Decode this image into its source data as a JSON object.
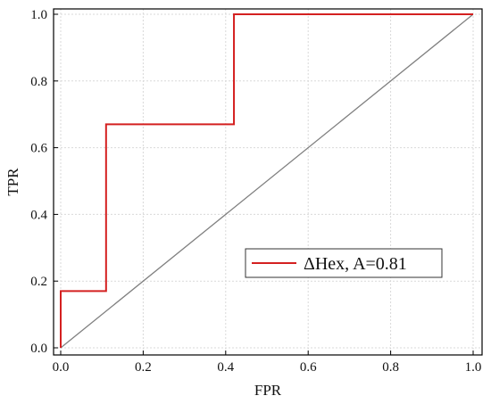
{
  "chart_data": {
    "type": "line",
    "xlabel": "FPR",
    "ylabel": "TPR",
    "xlim": [
      0,
      1
    ],
    "ylim": [
      0,
      1
    ],
    "x_ticks": [
      "0.0",
      "0.2",
      "0.4",
      "0.6",
      "0.8",
      "1.0"
    ],
    "y_ticks": [
      "0.0",
      "0.2",
      "0.4",
      "0.6",
      "0.8",
      "1.0"
    ],
    "grid": true,
    "legend_position": "center-right",
    "series": [
      {
        "name": "ΔHex, A=0.81",
        "color": "#d42020",
        "x": [
          0.0,
          0.0,
          0.11,
          0.11,
          0.42,
          0.42,
          1.0
        ],
        "y": [
          0.0,
          0.17,
          0.17,
          0.67,
          0.67,
          1.0,
          1.0
        ]
      }
    ],
    "reference_line": {
      "color": "#808080",
      "x": [
        0,
        1
      ],
      "y": [
        0,
        1
      ]
    }
  }
}
